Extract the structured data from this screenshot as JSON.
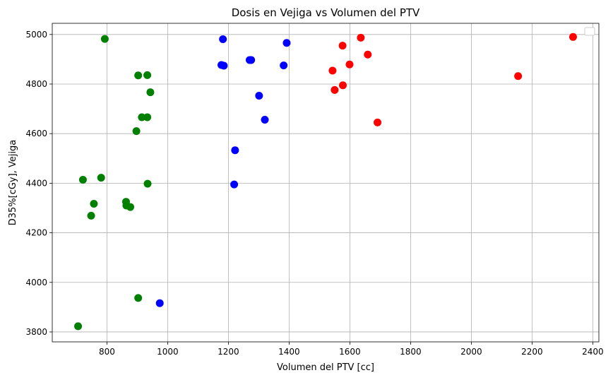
{
  "chart_data": {
    "type": "scatter",
    "title": "Dosis en Vejiga vs Volumen del PTV",
    "xlabel": "Volumen del PTV [cc]",
    "ylabel": "D35%[cGy], Vejiga",
    "xlim": [
      620,
      2420
    ],
    "ylim": [
      3760,
      5045
    ],
    "xticks": [
      800,
      1000,
      1200,
      1400,
      1600,
      1800,
      2000,
      2200,
      2400
    ],
    "yticks": [
      3800,
      4000,
      4200,
      4400,
      4600,
      4800,
      5000
    ],
    "xtick_labels": [
      "800",
      "1000",
      "1200",
      "1400",
      "1600",
      "1800",
      "2000",
      "2200",
      "2400"
    ],
    "ytick_labels": [
      "3800",
      "4000",
      "4200",
      "4400",
      "4600",
      "4800",
      "5000"
    ],
    "grid": true,
    "legend_placement": "top-right",
    "series": [
      {
        "color": "#008000",
        "points": [
          {
            "x": 793,
            "y": 4982
          },
          {
            "x": 903,
            "y": 4835
          },
          {
            "x": 933,
            "y": 4836
          },
          {
            "x": 943,
            "y": 4767
          },
          {
            "x": 915,
            "y": 4666
          },
          {
            "x": 933,
            "y": 4666
          },
          {
            "x": 897,
            "y": 4610
          },
          {
            "x": 721,
            "y": 4414
          },
          {
            "x": 781,
            "y": 4422
          },
          {
            "x": 934,
            "y": 4398
          },
          {
            "x": 757,
            "y": 4317
          },
          {
            "x": 863,
            "y": 4325
          },
          {
            "x": 864,
            "y": 4310
          },
          {
            "x": 877,
            "y": 4304
          },
          {
            "x": 748,
            "y": 4269
          },
          {
            "x": 903,
            "y": 3937
          },
          {
            "x": 705,
            "y": 3823
          }
        ]
      },
      {
        "color": "#0000ff",
        "points": [
          {
            "x": 1182,
            "y": 4981
          },
          {
            "x": 1392,
            "y": 4966
          },
          {
            "x": 1270,
            "y": 4897
          },
          {
            "x": 1275,
            "y": 4897
          },
          {
            "x": 1177,
            "y": 4877
          },
          {
            "x": 1185,
            "y": 4874
          },
          {
            "x": 1382,
            "y": 4875
          },
          {
            "x": 1301,
            "y": 4753
          },
          {
            "x": 1320,
            "y": 4656
          },
          {
            "x": 1222,
            "y": 4533
          },
          {
            "x": 1219,
            "y": 4395
          },
          {
            "x": 974,
            "y": 3916
          }
        ]
      },
      {
        "color": "#ff0000",
        "points": [
          {
            "x": 1636,
            "y": 4987
          },
          {
            "x": 2335,
            "y": 4990
          },
          {
            "x": 1576,
            "y": 4955
          },
          {
            "x": 1659,
            "y": 4919
          },
          {
            "x": 1599,
            "y": 4879
          },
          {
            "x": 1543,
            "y": 4854
          },
          {
            "x": 2154,
            "y": 4832
          },
          {
            "x": 1577,
            "y": 4795
          },
          {
            "x": 1550,
            "y": 4776
          },
          {
            "x": 1691,
            "y": 4645
          }
        ]
      }
    ]
  }
}
